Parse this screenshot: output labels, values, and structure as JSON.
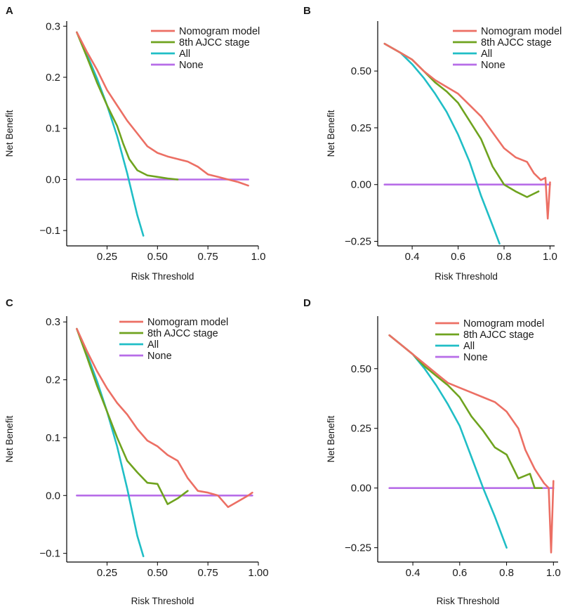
{
  "colors": {
    "nomogram": "#EC6F64",
    "ajcc": "#6FA31F",
    "all": "#20BEC6",
    "none": "#B76DE8",
    "axis": "#000000"
  },
  "chart_data": [
    {
      "panel": "A",
      "type": "line",
      "xlabel": "Risk Threshold",
      "ylabel": "Net Benefit",
      "xlim": [
        0.05,
        1.0
      ],
      "ylim": [
        -0.13,
        0.31
      ],
      "xticks": [
        0.25,
        0.5,
        0.75,
        1.0
      ],
      "xtick_labels": [
        "0.25",
        "0.50",
        "0.75",
        "1.0"
      ],
      "yticks": [
        -0.1,
        0.0,
        0.1,
        0.2,
        0.3
      ],
      "ytick_labels": [
        "−0.1",
        "0.0",
        "0.1",
        "0.2",
        "0.3"
      ],
      "legend": [
        "Nomogram model",
        "8th AJCC stage",
        "All",
        "None"
      ],
      "legend_position": "top-right",
      "series": [
        {
          "name": "Nomogram model",
          "key": "nomogram",
          "x": [
            0.1,
            0.15,
            0.2,
            0.25,
            0.3,
            0.35,
            0.4,
            0.45,
            0.5,
            0.55,
            0.6,
            0.65,
            0.7,
            0.75,
            0.8,
            0.85,
            0.9,
            0.95
          ],
          "y": [
            0.288,
            0.25,
            0.215,
            0.175,
            0.145,
            0.115,
            0.09,
            0.065,
            0.052,
            0.045,
            0.04,
            0.035,
            0.025,
            0.01,
            0.005,
            0.0,
            -0.005,
            -0.012
          ]
        },
        {
          "name": "8th AJCC stage",
          "key": "ajcc",
          "x": [
            0.1,
            0.15,
            0.2,
            0.25,
            0.3,
            0.33,
            0.36,
            0.4,
            0.45,
            0.5,
            0.55,
            0.6
          ],
          "y": [
            0.288,
            0.24,
            0.19,
            0.145,
            0.105,
            0.07,
            0.04,
            0.018,
            0.008,
            0.005,
            0.002,
            0.0
          ]
        },
        {
          "name": "All",
          "key": "all",
          "x": [
            0.1,
            0.15,
            0.2,
            0.25,
            0.3,
            0.35,
            0.4,
            0.43
          ],
          "y": [
            0.288,
            0.245,
            0.198,
            0.145,
            0.085,
            0.012,
            -0.07,
            -0.11
          ]
        },
        {
          "name": "None",
          "key": "none",
          "x": [
            0.1,
            0.95
          ],
          "y": [
            0.0,
            0.0
          ]
        }
      ]
    },
    {
      "panel": "B",
      "type": "line",
      "xlabel": "Risk Threshold",
      "ylabel": "Net Benefit",
      "xlim": [
        0.25,
        1.02
      ],
      "ylim": [
        -0.27,
        0.72
      ],
      "xticks": [
        0.4,
        0.6,
        0.8,
        1.0
      ],
      "xtick_labels": [
        "0.4",
        "0.6",
        "0.8",
        "1.0"
      ],
      "yticks": [
        -0.25,
        0.0,
        0.25,
        0.5
      ],
      "ytick_labels": [
        "−0.25",
        "0.00",
        "0.25",
        "0.50"
      ],
      "legend": [
        "Nomogram model",
        "8th AJCC stage",
        "All",
        "None"
      ],
      "legend_position": "top-right",
      "series": [
        {
          "name": "Nomogram model",
          "key": "nomogram",
          "x": [
            0.28,
            0.35,
            0.4,
            0.45,
            0.5,
            0.55,
            0.6,
            0.65,
            0.7,
            0.75,
            0.8,
            0.85,
            0.9,
            0.93,
            0.96,
            0.98,
            0.99,
            1.0
          ],
          "y": [
            0.62,
            0.58,
            0.55,
            0.5,
            0.46,
            0.43,
            0.4,
            0.35,
            0.3,
            0.23,
            0.16,
            0.12,
            0.1,
            0.05,
            0.02,
            0.03,
            -0.15,
            0.01
          ]
        },
        {
          "name": "8th AJCC stage",
          "key": "ajcc",
          "x": [
            0.28,
            0.35,
            0.4,
            0.45,
            0.5,
            0.55,
            0.6,
            0.65,
            0.7,
            0.75,
            0.8,
            0.85,
            0.9,
            0.95
          ],
          "y": [
            0.62,
            0.58,
            0.55,
            0.5,
            0.45,
            0.41,
            0.36,
            0.28,
            0.2,
            0.08,
            0.0,
            -0.03,
            -0.055,
            -0.03
          ]
        },
        {
          "name": "All",
          "key": "all",
          "x": [
            0.28,
            0.35,
            0.4,
            0.45,
            0.5,
            0.55,
            0.6,
            0.65,
            0.7,
            0.75,
            0.78
          ],
          "y": [
            0.62,
            0.58,
            0.53,
            0.47,
            0.4,
            0.32,
            0.22,
            0.1,
            -0.05,
            -0.18,
            -0.26
          ]
        },
        {
          "name": "None",
          "key": "none",
          "x": [
            0.28,
            1.0
          ],
          "y": [
            0.0,
            0.0
          ]
        }
      ]
    },
    {
      "panel": "C",
      "type": "line",
      "xlabel": "Risk Threshold",
      "ylabel": "Net Benefit",
      "xlim": [
        0.05,
        1.0
      ],
      "ylim": [
        -0.115,
        0.31
      ],
      "xticks": [
        0.25,
        0.5,
        0.75,
        1.0
      ],
      "xtick_labels": [
        "0.25",
        "0.50",
        "0.75",
        "1.00"
      ],
      "yticks": [
        -0.1,
        0.0,
        0.1,
        0.2,
        0.3
      ],
      "ytick_labels": [
        "−0.1",
        "0.0",
        "0.1",
        "0.2",
        "0.3"
      ],
      "legend": [
        "Nomogram model",
        "8th AJCC stage",
        "All",
        "None"
      ],
      "legend_position": "top-right",
      "series": [
        {
          "name": "Nomogram model",
          "key": "nomogram",
          "x": [
            0.1,
            0.15,
            0.2,
            0.25,
            0.3,
            0.35,
            0.4,
            0.45,
            0.5,
            0.55,
            0.6,
            0.65,
            0.7,
            0.75,
            0.8,
            0.85,
            0.9,
            0.95,
            0.97
          ],
          "y": [
            0.288,
            0.25,
            0.215,
            0.185,
            0.16,
            0.14,
            0.115,
            0.095,
            0.085,
            0.07,
            0.06,
            0.03,
            0.008,
            0.005,
            0.0,
            -0.02,
            -0.01,
            0.0,
            0.005
          ]
        },
        {
          "name": "8th AJCC stage",
          "key": "ajcc",
          "x": [
            0.1,
            0.15,
            0.2,
            0.25,
            0.3,
            0.35,
            0.4,
            0.45,
            0.5,
            0.55,
            0.6,
            0.65
          ],
          "y": [
            0.288,
            0.24,
            0.19,
            0.145,
            0.1,
            0.06,
            0.04,
            0.022,
            0.02,
            -0.015,
            -0.005,
            0.008
          ]
        },
        {
          "name": "All",
          "key": "all",
          "x": [
            0.1,
            0.15,
            0.2,
            0.25,
            0.3,
            0.35,
            0.4,
            0.43
          ],
          "y": [
            0.288,
            0.245,
            0.198,
            0.145,
            0.085,
            0.012,
            -0.07,
            -0.105
          ]
        },
        {
          "name": "None",
          "key": "none",
          "x": [
            0.1,
            0.97
          ],
          "y": [
            0.0,
            0.0
          ]
        }
      ]
    },
    {
      "panel": "D",
      "type": "line",
      "xlabel": "Risk Threshold",
      "ylabel": "Net Benefit",
      "xlim": [
        0.25,
        1.02
      ],
      "ylim": [
        -0.31,
        0.72
      ],
      "xticks": [
        0.4,
        0.6,
        0.8,
        1.0
      ],
      "xtick_labels": [
        "0.4",
        "0.6",
        "0.8",
        "1.0"
      ],
      "yticks": [
        -0.25,
        0.0,
        0.25,
        0.5
      ],
      "ytick_labels": [
        "−0.25",
        "0.00",
        "0.25",
        "0.50"
      ],
      "legend": [
        "Nomogram model",
        "8th AJCC stage",
        "All",
        "None"
      ],
      "legend_position": "top-right",
      "series": [
        {
          "name": "Nomogram model",
          "key": "nomogram",
          "x": [
            0.3,
            0.35,
            0.4,
            0.45,
            0.5,
            0.55,
            0.6,
            0.65,
            0.7,
            0.75,
            0.8,
            0.85,
            0.88,
            0.9,
            0.92,
            0.94,
            0.96,
            0.98,
            0.99,
            1.0
          ],
          "y": [
            0.64,
            0.6,
            0.56,
            0.52,
            0.48,
            0.44,
            0.42,
            0.4,
            0.38,
            0.36,
            0.32,
            0.25,
            0.16,
            0.12,
            0.08,
            0.05,
            0.02,
            0.0,
            -0.27,
            0.03
          ]
        },
        {
          "name": "8th AJCC stage",
          "key": "ajcc",
          "x": [
            0.3,
            0.35,
            0.4,
            0.45,
            0.5,
            0.55,
            0.6,
            0.65,
            0.7,
            0.75,
            0.8,
            0.85,
            0.9,
            0.92,
            0.95
          ],
          "y": [
            0.64,
            0.6,
            0.56,
            0.51,
            0.47,
            0.43,
            0.38,
            0.3,
            0.24,
            0.17,
            0.14,
            0.04,
            0.06,
            0.0,
            0.0
          ]
        },
        {
          "name": "All",
          "key": "all",
          "x": [
            0.3,
            0.35,
            0.4,
            0.45,
            0.5,
            0.55,
            0.6,
            0.65,
            0.7,
            0.75,
            0.8
          ],
          "y": [
            0.64,
            0.6,
            0.56,
            0.5,
            0.43,
            0.35,
            0.26,
            0.13,
            0.0,
            -0.12,
            -0.25
          ]
        },
        {
          "name": "None",
          "key": "none",
          "x": [
            0.3,
            1.0
          ],
          "y": [
            0.0,
            0.0
          ]
        }
      ]
    }
  ]
}
